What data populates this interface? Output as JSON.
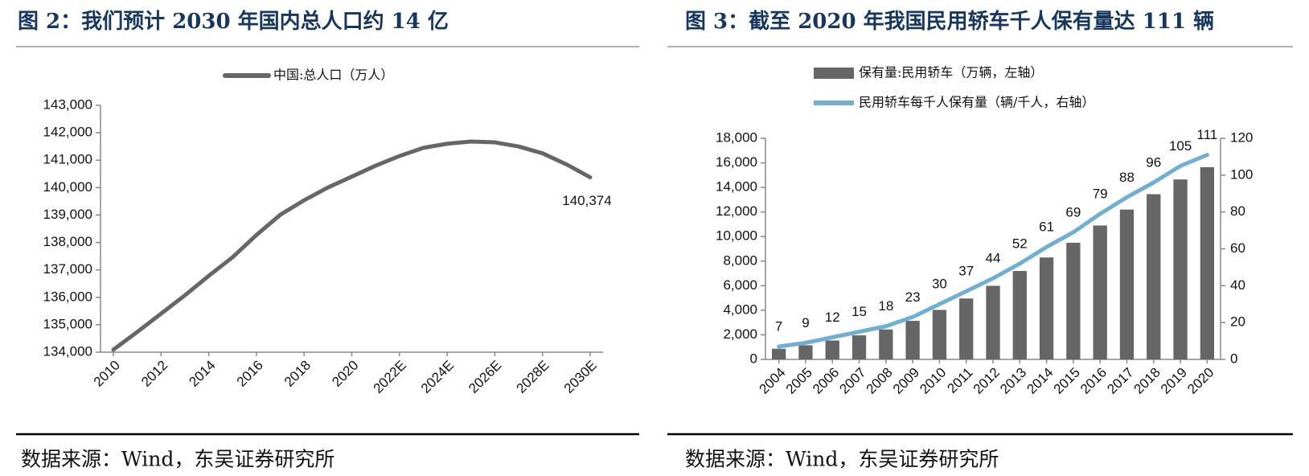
{
  "chart_data": [
    {
      "type": "line",
      "title": "图 2：我们预计 2030 年国内总人口约 14 亿",
      "source": "数据来源：Wind，东吴证券研究所",
      "categories": [
        "2010",
        null,
        "2012",
        null,
        "2014",
        null,
        "2016",
        null,
        "2018",
        null,
        "2020",
        null,
        "2022E",
        null,
        "2024E",
        null,
        "2026E",
        null,
        "2028E",
        null,
        "2030E"
      ],
      "series": [
        {
          "name": "中国:总人口（万人）",
          "color": "#666666",
          "values": [
            134091,
            134735,
            135404,
            136072,
            136782,
            137462,
            138271,
            139008,
            139538,
            140005,
            140400,
            140800,
            141150,
            141450,
            141600,
            141680,
            141650,
            141500,
            141250,
            140850,
            140374
          ],
          "value_labels": [
            null,
            null,
            null,
            null,
            null,
            null,
            null,
            null,
            null,
            null,
            null,
            null,
            null,
            null,
            null,
            null,
            null,
            null,
            null,
            null,
            "140,374"
          ]
        }
      ],
      "ylim": [
        134000,
        143000
      ],
      "yticks": [
        {
          "value": 134000,
          "label": "134,000"
        },
        {
          "value": 135000,
          "label": "135,000"
        },
        {
          "value": 136000,
          "label": "136,000"
        },
        {
          "value": 137000,
          "label": "137,000"
        },
        {
          "value": 138000,
          "label": "138,000"
        },
        {
          "value": 139000,
          "label": "139,000"
        },
        {
          "value": 140000,
          "label": "140,000"
        },
        {
          "value": 141000,
          "label": "141,000"
        },
        {
          "value": 142000,
          "label": "142,000"
        },
        {
          "value": 143000,
          "label": "143,000"
        }
      ]
    },
    {
      "type": "bar",
      "title": "图 3：截至 2020 年我国民用轿车千人保有量达 111 辆",
      "source": "数据来源：Wind，东吴证券研究所",
      "categories": [
        "2004",
        "2005",
        "2006",
        "2007",
        "2008",
        "2009",
        "2010",
        "2011",
        "2012",
        "2013",
        "2014",
        "2015",
        "2016",
        "2017",
        "2018",
        "2019",
        "2020"
      ],
      "series": [
        {
          "name": "保有量:民用轿车（万辆，左轴）",
          "type": "bar",
          "color": "#666666",
          "values": [
            870,
            1150,
            1540,
            1960,
            2440,
            3140,
            4030,
            4960,
            5990,
            7200,
            8300,
            9500,
            10900,
            12200,
            13450,
            14650,
            15650
          ]
        },
        {
          "name": "民用轿车每千人保有量（辆/千人，右轴）",
          "type": "line",
          "axis": "y2",
          "color": "#72aed0",
          "values": [
            7,
            9,
            12,
            15,
            18,
            23,
            30,
            37,
            44,
            52,
            61,
            69,
            79,
            88,
            96,
            105,
            111
          ],
          "show_labels": true
        }
      ],
      "ylim": [
        0,
        18000
      ],
      "yticks": [
        0,
        {
          "value": 2000,
          "label": "2,000"
        },
        {
          "value": 4000,
          "label": "4,000"
        },
        {
          "value": 6000,
          "label": "6,000"
        },
        {
          "value": 8000,
          "label": "8,000"
        },
        {
          "value": 10000,
          "label": "10,000"
        },
        {
          "value": 12000,
          "label": "12,000"
        },
        {
          "value": 14000,
          "label": "14,000"
        },
        {
          "value": 16000,
          "label": "16,000"
        },
        {
          "value": 18000,
          "label": "18,000"
        }
      ],
      "y2lim": [
        0,
        120
      ],
      "y2ticks": [
        0,
        20,
        40,
        60,
        80,
        100,
        120
      ]
    }
  ]
}
